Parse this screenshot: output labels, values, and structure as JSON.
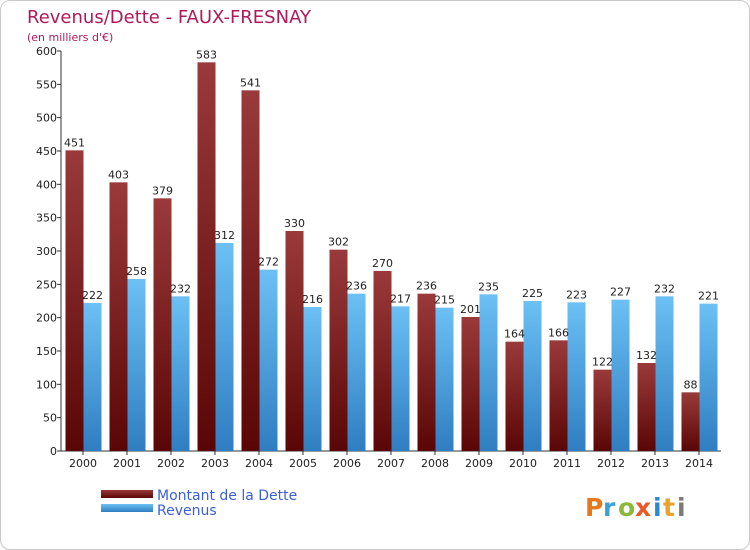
{
  "colors": {
    "debt_top": "#9a3a3a",
    "debt_bottom": "#5a0606",
    "revenue_top": "#6cc0f4",
    "revenue_bottom": "#2f7ec1",
    "title": "#b0185a",
    "legend_text": "#3a5fd6",
    "logo_p": "#e8781e",
    "logo_r": "#3aa0d8",
    "logo_o": "#8ab83a",
    "logo_x": "#e85a2a",
    "logo_i": "#2a8ad0",
    "logo_t": "#e8a32a",
    "logo_i2": "#7a7a7a"
  },
  "chart_data": {
    "type": "bar",
    "title": "Revenus/Dette - FAUX-FRESNAY",
    "subtitle": "(en milliers d'€)",
    "xlabel": "",
    "ylabel": "",
    "ylim": [
      0,
      600
    ],
    "yticks": [
      0,
      50,
      100,
      150,
      200,
      250,
      300,
      350,
      400,
      450,
      500,
      550,
      600
    ],
    "categories": [
      "2000",
      "2001",
      "2002",
      "2003",
      "2004",
      "2005",
      "2006",
      "2007",
      "2008",
      "2009",
      "2010",
      "2011",
      "2012",
      "2013",
      "2014"
    ],
    "series": [
      {
        "name": "Montant de la Dette",
        "values": [
          451,
          403,
          379,
          583,
          541,
          330,
          302,
          270,
          236,
          201,
          164,
          166,
          122,
          132,
          88
        ]
      },
      {
        "name": "Revenus",
        "values": [
          222,
          258,
          232,
          312,
          272,
          216,
          236,
          217,
          215,
          235,
          225,
          223,
          227,
          232,
          221
        ]
      }
    ],
    "grid": false,
    "legend": "bottom-left"
  },
  "logo": {
    "letters": [
      "P",
      "r",
      "o",
      "x",
      "i",
      "t",
      "i"
    ]
  }
}
